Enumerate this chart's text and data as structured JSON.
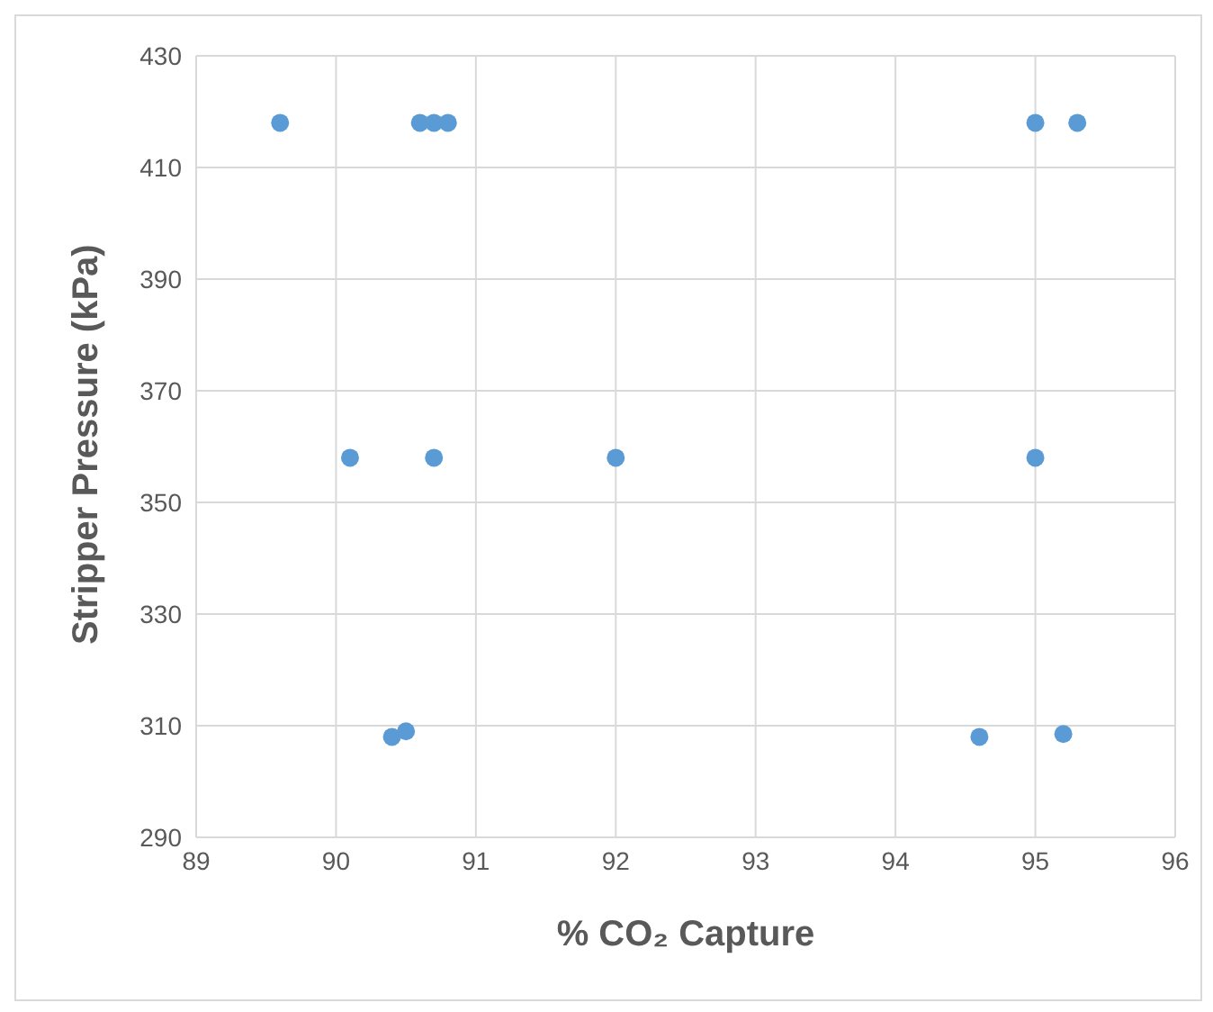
{
  "chart_data": {
    "type": "scatter",
    "xlabel": "% CO₂ Capture",
    "ylabel": "Stripper Pressure (kPa)",
    "x": [
      89.6,
      90.6,
      90.7,
      90.8,
      95.0,
      95.3,
      90.1,
      90.7,
      92.0,
      95.0,
      90.4,
      90.5,
      94.6,
      95.2
    ],
    "values": [
      418,
      418,
      418,
      418,
      418,
      418,
      358,
      358,
      358,
      358,
      308,
      309,
      308,
      308.5
    ],
    "color": "#5b9bd5",
    "marker": "circle",
    "xlim": [
      89,
      96
    ],
    "xticks": [
      89,
      90,
      91,
      92,
      93,
      94,
      95,
      96
    ],
    "ylim": [
      290,
      430
    ],
    "yticks": [
      290,
      310,
      330,
      350,
      370,
      390,
      410,
      430
    ],
    "grid": true,
    "legend": false
  }
}
